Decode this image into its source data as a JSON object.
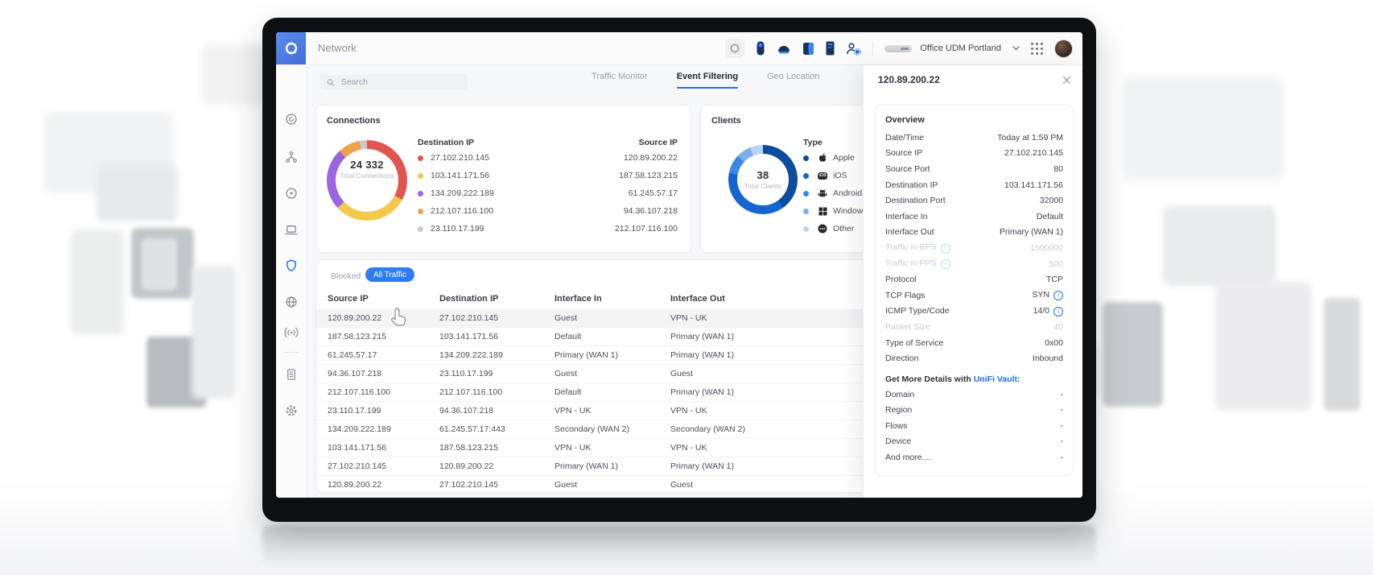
{
  "app": {
    "title": "Network",
    "search_placeholder": "Search",
    "site_selector": "Office UDM Portland"
  },
  "topbar_icons": [
    "ring-status-icon",
    "camera-device-icon",
    "dome-device-icon",
    "tablet-device-icon",
    "rack-device-icon",
    "admins-icon",
    "udm-thumbnail",
    "chevron-down-icon",
    "apps-grid-icon",
    "user-avatar"
  ],
  "sidebar_icons": [
    "dashboard-icon",
    "topology-icon",
    "devices-icon",
    "clients-icon",
    "security-icon",
    "insights-icon",
    "radios-icon",
    "system-log-icon",
    "settings-icon"
  ],
  "sidebar_active": "security-icon",
  "tabs": [
    {
      "label": "Traffic Monitor",
      "active": false
    },
    {
      "label": "Event Filtering",
      "active": true
    },
    {
      "label": "Geo Location",
      "active": false
    }
  ],
  "filters": {
    "blocked_label": "Blocked",
    "all_traffic_label": "All Traffic"
  },
  "chart_data": [
    {
      "type": "donut",
      "title": "Connections",
      "total": "24 332",
      "total_label": "Total Connections",
      "legend_header": "Destination IP",
      "secondary_header": "Source IP",
      "series": [
        {
          "label": "27.102.210.145",
          "color": "#e25450",
          "share": 33
        },
        {
          "label": "103.141.171.56",
          "color": "#f2c94c",
          "share": 30
        },
        {
          "label": "134.209.222.189",
          "color": "#9a66df",
          "share": 25
        },
        {
          "label": "212.107.116.100",
          "color": "#efa14c",
          "share": 9
        },
        {
          "label": "23.110.17.199",
          "color": "#c7cbd1",
          "share": 3
        }
      ],
      "secondary_values": [
        "120.89.200.22",
        "187.58.123.215",
        "61.245.57.17",
        "94.36.107.218",
        "212.107.116.100"
      ]
    },
    {
      "type": "donut",
      "title": "Clients",
      "total": "38",
      "total_label": "Total Clients",
      "legend_header": "Type",
      "series": [
        {
          "label": "Apple",
          "icon": "apple",
          "color": "#0d4d9e",
          "share": 40
        },
        {
          "label": "iOS",
          "icon": "ios",
          "color": "#1565d0",
          "share": 38
        },
        {
          "label": "Android",
          "icon": "android",
          "color": "#3d87e4",
          "share": 9
        },
        {
          "label": "Windows",
          "icon": "windows",
          "color": "#7fb0ee",
          "share": 7
        },
        {
          "label": "Other",
          "icon": "other",
          "color": "#b9d4f7",
          "share": 6
        }
      ]
    }
  ],
  "icon_glyphs": {
    "ios": "iOS"
  },
  "table": {
    "headers": [
      "Source IP",
      "Destination IP",
      "Interface In",
      "Interface Out"
    ],
    "highlighted_row": 0,
    "rows": [
      [
        "120.89.200.22",
        "27.102.210.145",
        "Guest",
        "VPN - UK"
      ],
      [
        "187.58.123.215",
        "103.141.171.56",
        "Default",
        "Primary (WAN 1)"
      ],
      [
        "61.245.57.17",
        "134.209.222.189",
        "Primary (WAN 1)",
        "Primary (WAN 1)"
      ],
      [
        "94.36.107.218",
        "23.110.17.199",
        "Guest",
        "Guest"
      ],
      [
        "212.107.116.100",
        "212.107.116.100",
        "Default",
        "Primary (WAN 1)"
      ],
      [
        "23.110.17.199",
        "94.36.107.218",
        "VPN - UK",
        "VPN - UK"
      ],
      [
        "134.209.222.189",
        "61.245.57.17:443",
        "Secondary (WAN 2)",
        "Secondary (WAN 2)"
      ],
      [
        "103.141.171.56",
        "187.58.123.215",
        "VPN - UK",
        "VPN - UK"
      ],
      [
        "27.102.210.145",
        "120.89.200.22",
        "Primary (WAN 1)",
        "Primary (WAN 1)"
      ],
      [
        "120.89.200.22",
        "27.102.210.145",
        "Guest",
        "Guest"
      ]
    ]
  },
  "detail_panel": {
    "title": "120.89.200.22",
    "section_header": "Overview",
    "rows": [
      {
        "label": "Date/Time",
        "value": "Today at 1:59 PM"
      },
      {
        "label": "Source IP",
        "value": "27.102.210.145"
      },
      {
        "label": "Source Port",
        "value": "80"
      },
      {
        "label": "Destination IP",
        "value": "103.141.171.56"
      },
      {
        "label": "Destination Port",
        "value": "32000"
      },
      {
        "label": "Interface In",
        "value": "Default"
      },
      {
        "label": "Interface Out",
        "value": "Primary (WAN 1)"
      },
      {
        "label": "Traffic in BPS",
        "value": "1500000",
        "muted": true,
        "label_info": true
      },
      {
        "label": "Traffic in PPS",
        "value": "500",
        "muted": true,
        "label_info": true
      },
      {
        "label": "Protocol",
        "value": "TCP"
      },
      {
        "label": "TCP Flags",
        "value": "SYN",
        "value_info": true
      },
      {
        "label": "ICMP Type/Code",
        "value": "14/0",
        "value_info": true
      },
      {
        "label": "Packet Size",
        "value": "40",
        "muted": true
      },
      {
        "label": "Type of Service",
        "value": "0x00"
      },
      {
        "label": "Direction",
        "value": "Inbound"
      }
    ],
    "vault": {
      "prefix": "Get More Details with ",
      "link": "UniFi Vault",
      "suffix": ":",
      "rows": [
        {
          "label": "Domain",
          "value": "-"
        },
        {
          "label": "Region",
          "value": "-"
        },
        {
          "label": "Flows",
          "value": "-"
        },
        {
          "label": "Device",
          "value": "-"
        },
        {
          "label": "And more....",
          "value": "-"
        }
      ]
    }
  },
  "colors": {
    "accent": "#1e6ff2",
    "all_traffic_pill": "#2e7df0",
    "muted_text": "#9aa0a8"
  }
}
